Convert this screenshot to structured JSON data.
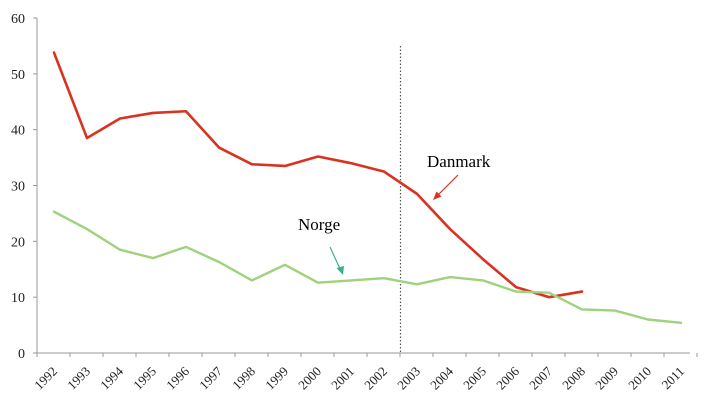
{
  "chart_data": {
    "type": "line",
    "categories": [
      "1992",
      "1993",
      "1994",
      "1995",
      "1996",
      "1997",
      "1998",
      "1999",
      "2000",
      "2001",
      "2002",
      "2003",
      "2004",
      "2005",
      "2006",
      "2007",
      "2008",
      "2009",
      "2010",
      "2011"
    ],
    "ylim": [
      0,
      60
    ],
    "yticks": [
      "0",
      "10",
      "20",
      "30",
      "40",
      "50",
      "60"
    ],
    "series": [
      {
        "name": "Danmark",
        "color": "#d9321f",
        "values": [
          53.8,
          38.5,
          42,
          43,
          43.3,
          36.8,
          33.8,
          33.5,
          35.2,
          34,
          32.5,
          28.5,
          22.2,
          16.8,
          11.8,
          10,
          11,
          null,
          null,
          null
        ]
      },
      {
        "name": "Norge",
        "color": "#9ed27c",
        "values": [
          25.3,
          22.2,
          18.5,
          17,
          19,
          16.3,
          13,
          15.8,
          12.6,
          13,
          13.4,
          12.3,
          13.6,
          13,
          11,
          10.8,
          7.8,
          7.6,
          6,
          5.4
        ]
      }
    ],
    "annotations": [
      {
        "text": "Danmark",
        "color": "#d9321f"
      },
      {
        "text": "Norge",
        "color": "#9ed27c"
      }
    ],
    "reference_line_year": "2002.5",
    "grid": false,
    "legend": "none"
  }
}
